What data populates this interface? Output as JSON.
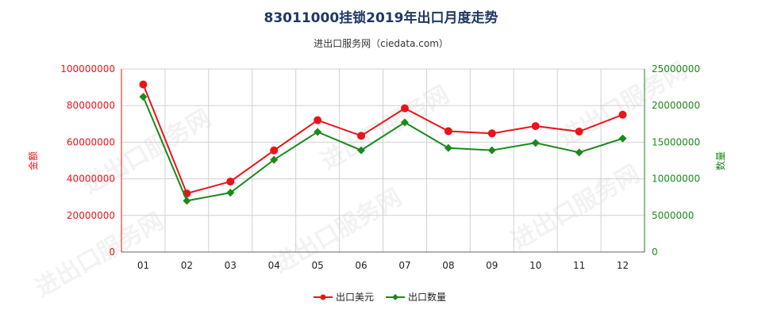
{
  "chart_data": {
    "type": "line",
    "title": "83011000挂锁2019年出口月度走势",
    "subtitle": "进出口服务网（ciedata.com）",
    "categories": [
      "01",
      "02",
      "03",
      "04",
      "05",
      "06",
      "07",
      "08",
      "09",
      "10",
      "11",
      "12"
    ],
    "y_left_label": "金额",
    "y_right_label": "数量",
    "y_left_range": [
      0,
      100000000
    ],
    "y_right_range": [
      0,
      25000000
    ],
    "y_left_ticks": [
      "0",
      "20000000",
      "40000000",
      "60000000",
      "80000000",
      "100000000"
    ],
    "y_right_ticks": [
      "0",
      "5000000",
      "10000000",
      "15000000",
      "20000000",
      "25000000"
    ],
    "grid": true,
    "legend_position": "bottom",
    "series": [
      {
        "name": "出口美元",
        "axis": "left",
        "color": "#e8141a",
        "marker": "circle",
        "values": [
          91500000,
          32000000,
          38500000,
          55500000,
          72000000,
          63500000,
          78500000,
          66000000,
          64800000,
          68800000,
          65800000,
          75000000
        ]
      },
      {
        "name": "出口数量",
        "axis": "right",
        "color": "#1a8a1a",
        "marker": "diamond",
        "values": [
          21200000,
          7000000,
          8100000,
          12600000,
          16400000,
          13900000,
          17700000,
          14200000,
          13900000,
          14900000,
          13600000,
          15500000
        ]
      }
    ],
    "watermark": "进出口服务网"
  }
}
